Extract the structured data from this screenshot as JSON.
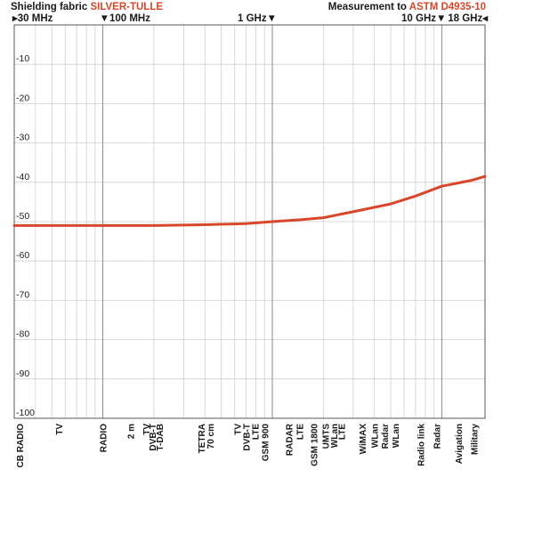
{
  "header": {
    "left_prefix": "Shielding fabric ",
    "left_accent": "SILVER-TULLE",
    "right_prefix": "Measurement to ",
    "right_accent": "ASTM D4935-10"
  },
  "freq_markers": [
    {
      "label": "30 MHz",
      "freq_mhz": 30,
      "arrow": "right"
    },
    {
      "label": "100 MHz",
      "freq_mhz": 100,
      "arrow": "down"
    },
    {
      "label": "1 GHz",
      "freq_mhz": 1000,
      "arrow": "down"
    },
    {
      "label": "10 GHz",
      "freq_mhz": 10000,
      "arrow": "down"
    },
    {
      "label": "18 GHz",
      "freq_mhz": 18000,
      "arrow": "left"
    }
  ],
  "colors": {
    "curve": "#d9472b",
    "accent": "#d4472a",
    "grid_major": "#8a8a8a",
    "grid_minor": "#cfcfcf"
  },
  "chart_data": {
    "type": "line",
    "x_scale": "log",
    "xlim_mhz": [
      30,
      18000
    ],
    "ylim": [
      -100,
      0
    ],
    "y_ticks": [
      -10,
      -20,
      -30,
      -40,
      -50,
      -60,
      -70,
      -80,
      -90,
      -100
    ],
    "grid": true,
    "series": [
      {
        "x_mhz": [
          30,
          60,
          100,
          200,
          400,
          700,
          1000,
          1500,
          2000,
          3000,
          5000,
          7000,
          10000,
          15000,
          18000
        ],
        "y_db": [
          -51,
          -51,
          -51,
          -51,
          -50.8,
          -50.5,
          -50,
          -49.5,
          -49,
          -47.5,
          -45.5,
          -43.5,
          -41,
          -39.5,
          -38.5
        ]
      }
    ],
    "bands": [
      {
        "label": "CB RADIO",
        "freq_mhz": 27
      },
      {
        "label": "TV",
        "freq_mhz": 55
      },
      {
        "label": "RADIO",
        "freq_mhz": 100
      },
      {
        "label": "2 m",
        "freq_mhz": 145
      },
      {
        "label": "TV",
        "freq_mhz": 180
      },
      {
        "label": "DVB-T",
        "freq_mhz": 195
      },
      {
        "label": "T-DAB",
        "freq_mhz": 215
      },
      {
        "label": "TETRA",
        "freq_mhz": 380
      },
      {
        "label": "70 cm",
        "freq_mhz": 430
      },
      {
        "label": "TV",
        "freq_mhz": 620
      },
      {
        "label": "DVB-T",
        "freq_mhz": 700
      },
      {
        "label": "LTE",
        "freq_mhz": 790
      },
      {
        "label": "GSM 900",
        "freq_mhz": 900
      },
      {
        "label": "RADAR",
        "freq_mhz": 1250
      },
      {
        "label": "LTE",
        "freq_mhz": 1450
      },
      {
        "label": "GSM 1800",
        "freq_mhz": 1750
      },
      {
        "label": "UMTS",
        "freq_mhz": 2050
      },
      {
        "label": "WLan",
        "freq_mhz": 2300
      },
      {
        "label": "LTE",
        "freq_mhz": 2550
      },
      {
        "label": "WiMAX",
        "freq_mhz": 3400
      },
      {
        "label": "WLan",
        "freq_mhz": 4000
      },
      {
        "label": "Radar",
        "freq_mhz": 4600
      },
      {
        "label": "WLan",
        "freq_mhz": 5300
      },
      {
        "label": "Radio link",
        "freq_mhz": 7500
      },
      {
        "label": "Radar",
        "freq_mhz": 9300
      },
      {
        "label": "Avigation",
        "freq_mhz": 12500
      },
      {
        "label": "Military",
        "freq_mhz": 15500
      }
    ]
  }
}
